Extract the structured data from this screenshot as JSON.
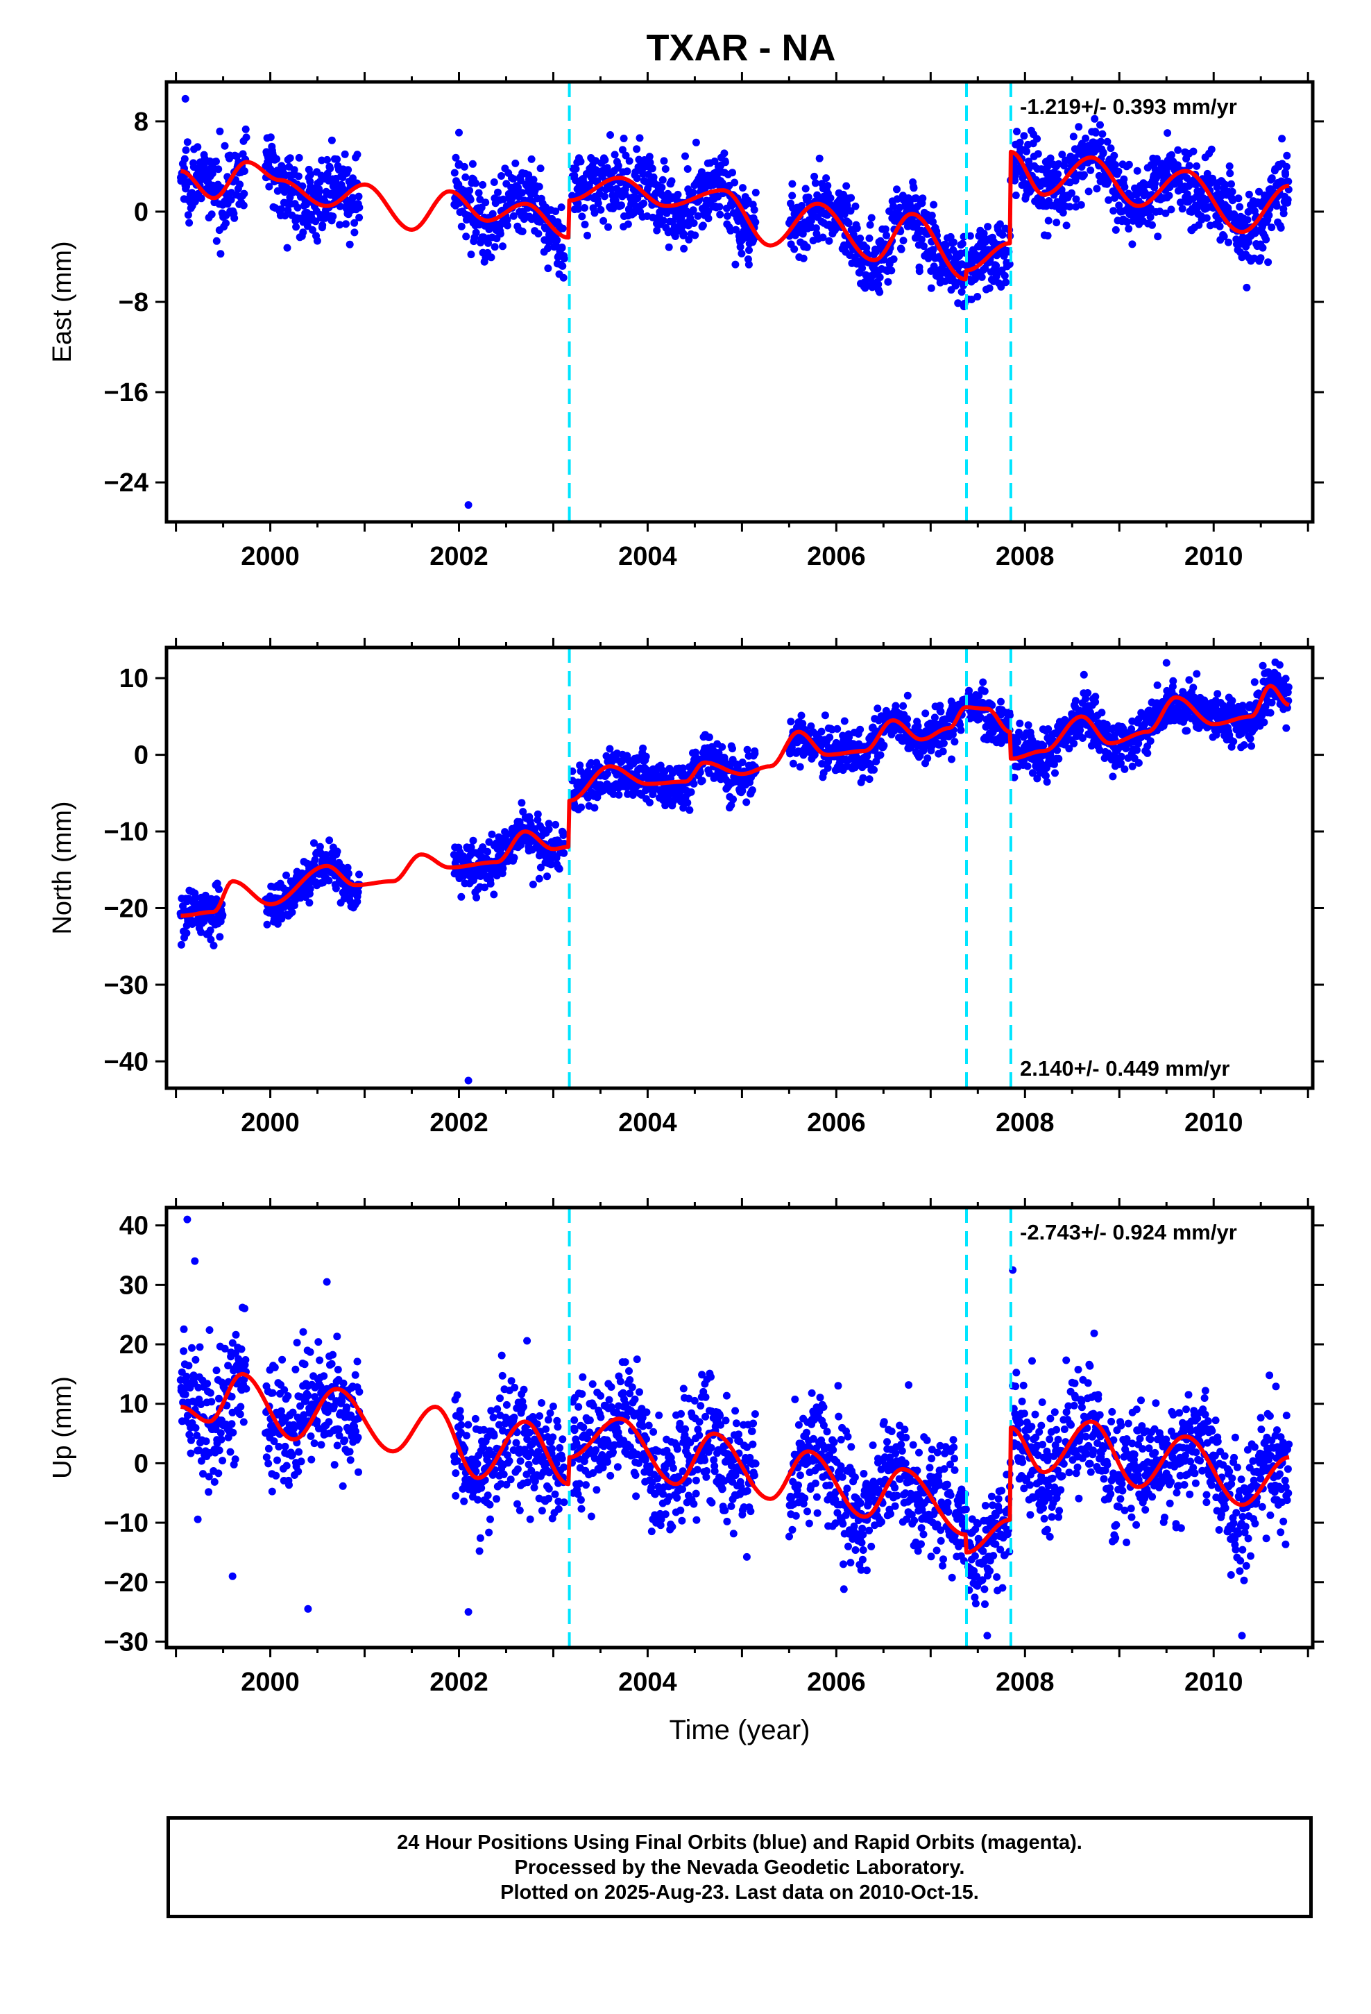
{
  "title": "TXAR - NA",
  "xlabel": "Time (year)",
  "footer": {
    "line1": "24 Hour Positions Using Final Orbits (blue) and Rapid Orbits (magenta).",
    "line2": "Processed by the Nevada Geodetic Laboratory.",
    "line3": "Plotted on 2025-Aug-23. Last data on 2010-Oct-15."
  },
  "colors": {
    "points": "#0000ff",
    "model": "#ff0000",
    "breaks": "#00e5ff",
    "axis": "#000000"
  },
  "chart_data": [
    {
      "type": "scatter",
      "name": "east",
      "ylabel": "East (mm)",
      "xlim": [
        1998.9,
        2011.05
      ],
      "ylim": [
        -27.5,
        11.5
      ],
      "yticks": [
        8,
        0,
        -8,
        -16,
        -24
      ],
      "ytick_labels": [
        "8",
        "0",
        "−8",
        "−16",
        "−24"
      ],
      "xticks": [
        2000,
        2002,
        2004,
        2006,
        2008,
        2010
      ],
      "rate_label": "-1.219+/- 0.393 mm/yr",
      "rate_position": "top-right",
      "breaks": [
        2003.17,
        2007.38,
        2007.85
      ],
      "data_segments": [
        [
          1999.05,
          1999.75
        ],
        [
          1999.95,
          2000.95
        ],
        [
          2001.95,
          2003.12
        ],
        [
          2003.2,
          2005.15
        ],
        [
          2005.5,
          2007.38
        ],
        [
          2007.4,
          2007.85
        ],
        [
          2007.87,
          2010.8
        ]
      ],
      "trend": [
        [
          1999.05,
          3.6
        ],
        [
          1999.4,
          1.2
        ],
        [
          1999.75,
          4.4
        ],
        [
          2000.1,
          2.8
        ],
        [
          2000.6,
          0.5
        ],
        [
          2001.0,
          2.4
        ],
        [
          2001.5,
          -1.6
        ],
        [
          2001.9,
          1.8
        ],
        [
          2002.3,
          -0.8
        ],
        [
          2002.7,
          0.7
        ],
        [
          2003.16,
          -2.3
        ],
        [
          2003.17,
          1.0
        ],
        [
          2003.7,
          3.0
        ],
        [
          2004.2,
          0.5
        ],
        [
          2004.8,
          1.9
        ],
        [
          2005.3,
          -3.0
        ],
        [
          2005.8,
          0.7
        ],
        [
          2006.4,
          -4.3
        ],
        [
          2006.8,
          -0.2
        ],
        [
          2007.37,
          -6.0
        ],
        [
          2007.38,
          -5.2
        ],
        [
          2007.84,
          -2.8
        ],
        [
          2007.85,
          5.3
        ],
        [
          2008.2,
          1.5
        ],
        [
          2008.7,
          4.8
        ],
        [
          2009.2,
          0.5
        ],
        [
          2009.7,
          3.6
        ],
        [
          2010.3,
          -1.8
        ],
        [
          2010.8,
          2.3
        ]
      ],
      "outliers": [
        [
          2002.1,
          -26.0
        ],
        [
          1999.1,
          10.0
        ],
        [
          2002.0,
          7.0
        ]
      ],
      "noise_sd": 1.6
    },
    {
      "type": "scatter",
      "name": "north",
      "ylabel": "North (mm)",
      "xlim": [
        1998.9,
        2011.05
      ],
      "ylim": [
        -43.5,
        14.0
      ],
      "yticks": [
        10,
        0,
        -10,
        -20,
        -30,
        -40
      ],
      "ytick_labels": [
        "10",
        "0",
        "−10",
        "−20",
        "−30",
        "−40"
      ],
      "xticks": [
        2000,
        2002,
        2004,
        2006,
        2008,
        2010
      ],
      "rate_label": "2.140+/- 0.449 mm/yr",
      "rate_position": "bottom-right",
      "breaks": [
        2003.17,
        2007.38,
        2007.85
      ],
      "data_segments": [
        [
          1999.05,
          1999.5
        ],
        [
          1999.95,
          2000.95
        ],
        [
          2001.95,
          2003.12
        ],
        [
          2003.2,
          2005.15
        ],
        [
          2005.5,
          2007.38
        ],
        [
          2007.4,
          2007.85
        ],
        [
          2007.87,
          2010.8
        ]
      ],
      "trend": [
        [
          1999.05,
          -21.0
        ],
        [
          1999.4,
          -20.5
        ],
        [
          1999.6,
          -16.5
        ],
        [
          2000.0,
          -19.5
        ],
        [
          2000.6,
          -14.5
        ],
        [
          2000.9,
          -17.0
        ],
        [
          2001.3,
          -16.5
        ],
        [
          2001.6,
          -13.0
        ],
        [
          2001.9,
          -14.7
        ],
        [
          2002.4,
          -14.0
        ],
        [
          2002.7,
          -10.0
        ],
        [
          2003.0,
          -12.3
        ],
        [
          2003.16,
          -12.0
        ],
        [
          2003.17,
          -6.0
        ],
        [
          2003.6,
          -1.5
        ],
        [
          2004.0,
          -3.8
        ],
        [
          2004.4,
          -3.5
        ],
        [
          2004.6,
          -1.0
        ],
        [
          2005.0,
          -2.5
        ],
        [
          2005.3,
          -1.5
        ],
        [
          2005.6,
          3.0
        ],
        [
          2005.9,
          0.0
        ],
        [
          2006.3,
          0.5
        ],
        [
          2006.6,
          4.5
        ],
        [
          2006.9,
          2.0
        ],
        [
          2007.2,
          3.5
        ],
        [
          2007.37,
          6.2
        ],
        [
          2007.6,
          6.0
        ],
        [
          2007.84,
          3.0
        ],
        [
          2007.85,
          -0.5
        ],
        [
          2008.2,
          0.5
        ],
        [
          2008.6,
          5.0
        ],
        [
          2008.9,
          1.5
        ],
        [
          2009.3,
          3.0
        ],
        [
          2009.6,
          7.5
        ],
        [
          2010.0,
          4.0
        ],
        [
          2010.4,
          5.0
        ],
        [
          2010.6,
          9.0
        ],
        [
          2010.8,
          6.5
        ]
      ],
      "outliers": [
        [
          2002.1,
          -42.5
        ],
        [
          2009.5,
          12.0
        ]
      ],
      "noise_sd": 1.5
    },
    {
      "type": "scatter",
      "name": "up",
      "ylabel": "Up (mm)",
      "xlim": [
        1998.9,
        2011.05
      ],
      "ylim": [
        -31.0,
        43.0
      ],
      "yticks": [
        40,
        30,
        20,
        10,
        0,
        -10,
        -20,
        -30
      ],
      "ytick_labels": [
        "40",
        "30",
        "20",
        "10",
        "0",
        "−10",
        "−20",
        "−30"
      ],
      "xticks": [
        2000,
        2002,
        2004,
        2006,
        2008,
        2010
      ],
      "rate_label": "-2.743+/- 0.924 mm/yr",
      "rate_position": "top-right",
      "breaks": [
        2003.17,
        2007.38,
        2007.85
      ],
      "data_segments": [
        [
          1999.05,
          1999.75
        ],
        [
          1999.95,
          2000.95
        ],
        [
          2001.95,
          2003.12
        ],
        [
          2003.2,
          2005.15
        ],
        [
          2005.5,
          2007.38
        ],
        [
          2007.4,
          2007.85
        ],
        [
          2007.87,
          2010.8
        ]
      ],
      "trend": [
        [
          1999.05,
          9.5
        ],
        [
          1999.35,
          7.0
        ],
        [
          1999.7,
          15.0
        ],
        [
          2000.25,
          4.0
        ],
        [
          2000.7,
          12.5
        ],
        [
          2001.3,
          2.0
        ],
        [
          2001.75,
          9.5
        ],
        [
          2002.2,
          -2.5
        ],
        [
          2002.7,
          7.0
        ],
        [
          2003.16,
          -3.5
        ],
        [
          2003.17,
          1.0
        ],
        [
          2003.7,
          7.5
        ],
        [
          2004.3,
          -3.5
        ],
        [
          2004.7,
          5.0
        ],
        [
          2005.3,
          -6.0
        ],
        [
          2005.7,
          2.0
        ],
        [
          2006.3,
          -9.0
        ],
        [
          2006.7,
          -1.0
        ],
        [
          2007.37,
          -12.0
        ],
        [
          2007.38,
          -15.0
        ],
        [
          2007.84,
          -9.5
        ],
        [
          2007.85,
          6.0
        ],
        [
          2008.2,
          -1.5
        ],
        [
          2008.7,
          7.0
        ],
        [
          2009.2,
          -4.0
        ],
        [
          2009.7,
          4.5
        ],
        [
          2010.3,
          -7.0
        ],
        [
          2010.8,
          1.0
        ]
      ],
      "outliers": [
        [
          1999.12,
          41.0
        ],
        [
          1999.2,
          34.0
        ],
        [
          2000.6,
          30.5
        ],
        [
          2007.87,
          32.5
        ],
        [
          2007.6,
          -29.0
        ],
        [
          2010.3,
          -29.0
        ],
        [
          2002.1,
          -25.0
        ],
        [
          2000.4,
          -24.5
        ],
        [
          1999.6,
          -19.0
        ]
      ],
      "noise_sd": 5.0
    }
  ]
}
